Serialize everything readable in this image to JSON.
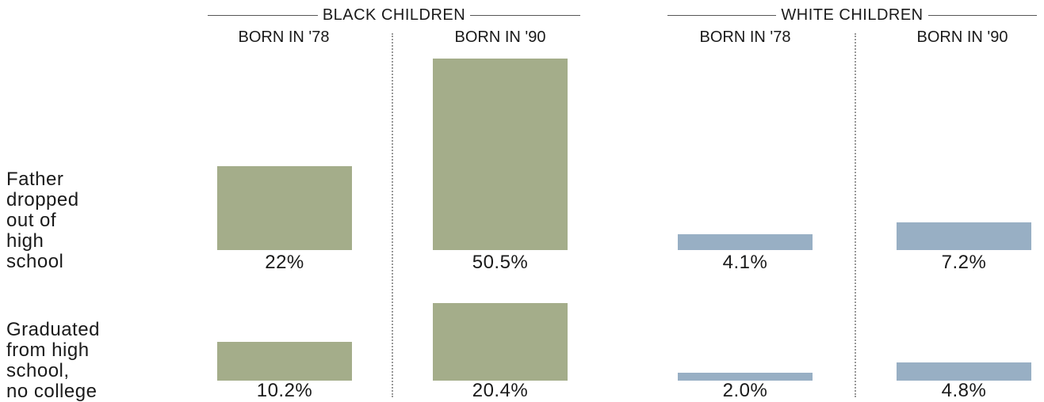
{
  "groups": [
    {
      "title": "BLACK CHILDREN",
      "color": "#a4ad8a"
    },
    {
      "title": "WHITE CHILDREN",
      "color": "#98afc4"
    }
  ],
  "columns": [
    {
      "label": "BORN IN '78",
      "group": 0
    },
    {
      "label": "BORN IN '90",
      "group": 0
    },
    {
      "label": "BORN IN '78",
      "group": 1
    },
    {
      "label": "BORN IN '90",
      "group": 1
    }
  ],
  "rows": [
    {
      "label_lines": [
        "Father",
        "dropped",
        "out of",
        "high",
        "school"
      ]
    },
    {
      "label_lines": [
        "Graduated",
        "from high",
        "school,",
        "no college"
      ]
    }
  ],
  "chart_data": {
    "type": "bar",
    "series": [
      {
        "name": "Father dropped out of high school",
        "values": [
          22,
          50.5,
          4.1,
          7.2
        ],
        "labels": [
          "22%",
          "50.5%",
          "4.1%",
          "7.2%"
        ]
      },
      {
        "name": "Graduated from high school, no college",
        "values": [
          10.2,
          20.4,
          2.0,
          4.8
        ],
        "labels": [
          "10.2%",
          "20.4%",
          "2.0%",
          "4.8%"
        ]
      }
    ],
    "categories": [
      "BLACK CHILDREN BORN IN '78",
      "BLACK CHILDREN BORN IN '90",
      "WHITE CHILDREN BORN IN '78",
      "WHITE CHILDREN BORN IN '90"
    ],
    "colors": [
      "#a4ad8a",
      "#a4ad8a",
      "#98afc4",
      "#98afc4"
    ]
  }
}
